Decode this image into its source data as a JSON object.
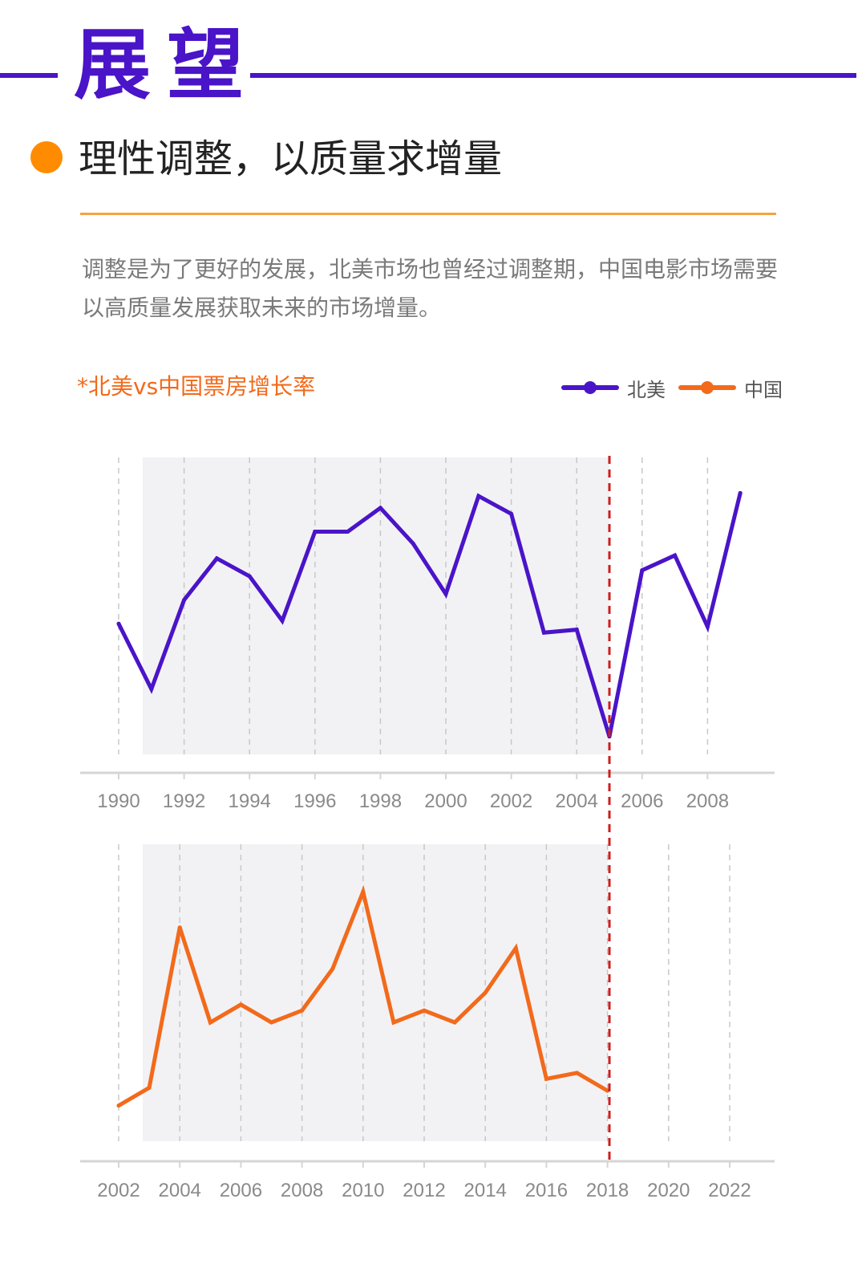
{
  "header": {
    "title": "展望",
    "subtitle": "理性调整，以质量求增量",
    "description": "调整是为了更好的发展，北美市场也曾经过调整期，中国电影市场需要以高质量发展获取未来的市场增量。"
  },
  "colors": {
    "accent": "#4a14c8",
    "orange_dot": "#ff8c00",
    "separator": "#f4a340",
    "china_line": "#f26a1b",
    "north_america_line": "#4a14c8",
    "dashed_marker": "#cc1f1f",
    "grid": "#c8c8c8",
    "axis_text": "#8a8a8a"
  },
  "chart_data": [
    {
      "type": "line",
      "title": "*北美vs中国票房增长率",
      "legend_position": "top-right",
      "series": [
        {
          "name": "北美"
        }
      ],
      "x": [
        1990,
        1991,
        1992,
        1993,
        1994,
        1995,
        1996,
        1997,
        1998,
        1999,
        2000,
        2001,
        2002,
        2003,
        2004,
        2005,
        2006,
        2007,
        2008,
        2009
      ],
      "values": [
        44,
        22,
        52,
        66,
        60,
        45,
        75,
        75,
        83,
        71,
        54,
        87,
        81,
        41,
        42,
        6,
        62,
        67,
        43,
        88
      ],
      "x_tick_labels": [
        "1990",
        "1992",
        "1994",
        "1996",
        "1998",
        "2000",
        "2002",
        "2004",
        "2006",
        "2008"
      ],
      "xlim": [
        1990,
        2009
      ],
      "ylim": [
        0,
        100
      ],
      "marker_year": 2005,
      "y_axis_labels_visible": false,
      "grid": "vertical dashed"
    },
    {
      "type": "line",
      "series": [
        {
          "name": "中国"
        }
      ],
      "x": [
        2002,
        2003,
        2004,
        2005,
        2006,
        2007,
        2008,
        2009,
        2010,
        2011,
        2012,
        2013,
        2014,
        2015,
        2016,
        2017,
        2018
      ],
      "values": [
        12,
        18,
        72,
        40,
        46,
        40,
        44,
        58,
        84,
        40,
        44,
        40,
        50,
        65,
        21,
        23,
        17
      ],
      "x_tick_labels": [
        "2002",
        "2004",
        "2006",
        "2008",
        "2010",
        "2012",
        "2014",
        "2016",
        "2018",
        "2020",
        "2022"
      ],
      "xlim": [
        2002,
        2022
      ],
      "ylim": [
        0,
        100
      ],
      "marker_year": 2018,
      "y_axis_labels_visible": false,
      "grid": "vertical dashed"
    }
  ]
}
